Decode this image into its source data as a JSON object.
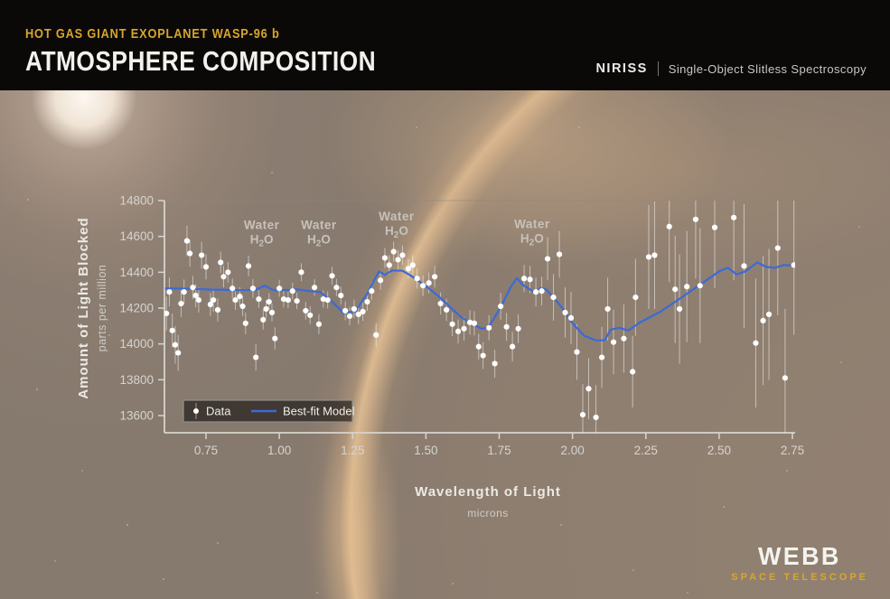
{
  "header": {
    "eyebrow": "HOT GAS GIANT EXOPLANET WASP-96 b",
    "title": "ATMOSPHERE COMPOSITION",
    "instrument": "NIRISS",
    "mode": "Single-Object Slitless Spectroscopy"
  },
  "logo": {
    "name": "WEBB",
    "sub": "SPACE TELESCOPE"
  },
  "chart_data": {
    "type": "scatter",
    "xlabel": "Wavelength of Light",
    "xlabel_sub": "microns",
    "ylabel": "Amount of Light Blocked",
    "ylabel_sub": "parts per million",
    "xlim": [
      0.6,
      2.8
    ],
    "ylim": [
      13500,
      14800
    ],
    "x_ticks": [
      0.75,
      1.0,
      1.25,
      1.5,
      1.75,
      2.0,
      2.25,
      2.5,
      2.75
    ],
    "x_tick_labels": [
      "0.75",
      "1.00",
      "1.25",
      "1.50",
      "1.75",
      "2.00",
      "2.25",
      "2.50",
      "2.75"
    ],
    "y_ticks": [
      14800,
      14600,
      14400,
      14200,
      14000,
      13800,
      13600
    ],
    "grid": false,
    "legend": {
      "data_label": "Data",
      "model_label": "Best-fit Model",
      "position": "lower left"
    },
    "colors": {
      "model": "#3b6ad8",
      "data": "#ffffff",
      "axis": "#d7d4cf",
      "annotation": "#c6c2bb",
      "box": "#8a8782",
      "accent_gold": "#d9a62c"
    },
    "annotations": [
      {
        "line1": "Water",
        "line2": "H₂O",
        "x": 0.94,
        "y": 14640
      },
      {
        "line1": "Water",
        "line2": "H₂O",
        "x": 1.135,
        "y": 14640
      },
      {
        "line1": "Water",
        "line2": "H₂O",
        "x": 1.4,
        "y": 14690
      },
      {
        "line1": "Water",
        "line2": "H₂O",
        "x": 1.862,
        "y": 14645
      }
    ],
    "series": [
      {
        "name": "Data",
        "type": "scatter",
        "points": [
          [
            0.615,
            14170,
            95
          ],
          [
            0.625,
            14290,
            80
          ],
          [
            0.635,
            14075,
            95
          ],
          [
            0.645,
            13995,
            105
          ],
          [
            0.655,
            13950,
            100
          ],
          [
            0.665,
            14225,
            75
          ],
          [
            0.675,
            14290,
            70
          ],
          [
            0.685,
            14575,
            85
          ],
          [
            0.695,
            14505,
            75
          ],
          [
            0.705,
            14315,
            65
          ],
          [
            0.715,
            14270,
            65
          ],
          [
            0.725,
            14245,
            70
          ],
          [
            0.735,
            14495,
            75
          ],
          [
            0.75,
            14430,
            70
          ],
          [
            0.765,
            14220,
            65
          ],
          [
            0.775,
            14245,
            65
          ],
          [
            0.79,
            14190,
            65
          ],
          [
            0.8,
            14455,
            60
          ],
          [
            0.81,
            14375,
            60
          ],
          [
            0.825,
            14400,
            58
          ],
          [
            0.84,
            14310,
            55
          ],
          [
            0.85,
            14245,
            55
          ],
          [
            0.865,
            14265,
            52
          ],
          [
            0.875,
            14210,
            55
          ],
          [
            0.885,
            14115,
            60
          ],
          [
            0.895,
            14435,
            58
          ],
          [
            0.91,
            14310,
            52
          ],
          [
            0.92,
            13925,
            75
          ],
          [
            0.93,
            14250,
            50
          ],
          [
            0.945,
            14135,
            55
          ],
          [
            0.955,
            14195,
            50
          ],
          [
            0.965,
            14235,
            48
          ],
          [
            0.975,
            14175,
            50
          ],
          [
            0.985,
            14030,
            62
          ],
          [
            1.0,
            14310,
            48
          ],
          [
            1.015,
            14250,
            46
          ],
          [
            1.03,
            14245,
            46
          ],
          [
            1.045,
            14295,
            46
          ],
          [
            1.06,
            14240,
            46
          ],
          [
            1.075,
            14400,
            50
          ],
          [
            1.09,
            14185,
            50
          ],
          [
            1.105,
            14160,
            50
          ],
          [
            1.12,
            14315,
            46
          ],
          [
            1.135,
            14110,
            56
          ],
          [
            1.15,
            14250,
            48
          ],
          [
            1.165,
            14245,
            48
          ],
          [
            1.18,
            14380,
            50
          ],
          [
            1.195,
            14315,
            48
          ],
          [
            1.21,
            14270,
            50
          ],
          [
            1.225,
            14185,
            52
          ],
          [
            1.24,
            14155,
            52
          ],
          [
            1.255,
            14195,
            52
          ],
          [
            1.27,
            14165,
            54
          ],
          [
            1.285,
            14180,
            52
          ],
          [
            1.3,
            14235,
            50
          ],
          [
            1.315,
            14295,
            50
          ],
          [
            1.33,
            14050,
            65
          ],
          [
            1.345,
            14355,
            52
          ],
          [
            1.36,
            14480,
            56
          ],
          [
            1.375,
            14440,
            54
          ],
          [
            1.39,
            14515,
            56
          ],
          [
            1.405,
            14470,
            54
          ],
          [
            1.42,
            14495,
            54
          ],
          [
            1.44,
            14420,
            54
          ],
          [
            1.455,
            14440,
            56
          ],
          [
            1.47,
            14365,
            56
          ],
          [
            1.49,
            14325,
            58
          ],
          [
            1.51,
            14340,
            58
          ],
          [
            1.53,
            14375,
            60
          ],
          [
            1.55,
            14225,
            62
          ],
          [
            1.57,
            14190,
            62
          ],
          [
            1.59,
            14110,
            66
          ],
          [
            1.61,
            14070,
            66
          ],
          [
            1.63,
            14085,
            66
          ],
          [
            1.65,
            14120,
            68
          ],
          [
            1.665,
            14115,
            68
          ],
          [
            1.68,
            13985,
            72
          ],
          [
            1.695,
            13935,
            75
          ],
          [
            1.715,
            14090,
            70
          ],
          [
            1.735,
            13890,
            78
          ],
          [
            1.755,
            14210,
            75
          ],
          [
            1.775,
            14095,
            78
          ],
          [
            1.795,
            13985,
            82
          ],
          [
            1.815,
            14085,
            80
          ],
          [
            1.835,
            14365,
            76
          ],
          [
            1.855,
            14360,
            76
          ],
          [
            1.875,
            14290,
            80
          ],
          [
            1.895,
            14295,
            80
          ],
          [
            1.915,
            14475,
            120
          ],
          [
            1.935,
            14260,
            130
          ],
          [
            1.955,
            14500,
            130
          ],
          [
            1.975,
            14175,
            140
          ],
          [
            1.995,
            14145,
            145
          ],
          [
            2.015,
            13955,
            155
          ],
          [
            2.035,
            13605,
            170
          ],
          [
            2.055,
            13750,
            170
          ],
          [
            2.08,
            13590,
            180
          ],
          [
            2.1,
            13925,
            170
          ],
          [
            2.12,
            14195,
            175
          ],
          [
            2.14,
            14010,
            180
          ],
          [
            2.175,
            14030,
            190
          ],
          [
            2.205,
            13845,
            200
          ],
          [
            2.215,
            14260,
            215
          ],
          [
            2.26,
            14485,
            290
          ],
          [
            2.28,
            14495,
            300
          ],
          [
            2.33,
            14655,
            310
          ],
          [
            2.35,
            14305,
            300
          ],
          [
            2.365,
            14195,
            305
          ],
          [
            2.39,
            14320,
            310
          ],
          [
            2.42,
            14695,
            330
          ],
          [
            2.435,
            14325,
            320
          ],
          [
            2.485,
            14650,
            340
          ],
          [
            2.55,
            14705,
            350
          ],
          [
            2.585,
            14435,
            345
          ],
          [
            2.625,
            14005,
            360
          ],
          [
            2.65,
            14130,
            360
          ],
          [
            2.67,
            14165,
            365
          ],
          [
            2.7,
            14535,
            375
          ],
          [
            2.725,
            13810,
            385
          ],
          [
            2.755,
            14440,
            390
          ]
        ]
      },
      {
        "name": "Best-fit Model",
        "type": "line",
        "points": [
          [
            0.61,
            14310
          ],
          [
            0.7,
            14308
          ],
          [
            0.78,
            14303
          ],
          [
            0.86,
            14300
          ],
          [
            0.92,
            14302
          ],
          [
            0.95,
            14325
          ],
          [
            0.98,
            14300
          ],
          [
            1.02,
            14300
          ],
          [
            1.06,
            14305
          ],
          [
            1.1,
            14295
          ],
          [
            1.14,
            14290
          ],
          [
            1.18,
            14235
          ],
          [
            1.22,
            14172
          ],
          [
            1.26,
            14185
          ],
          [
            1.3,
            14280
          ],
          [
            1.325,
            14360
          ],
          [
            1.34,
            14405
          ],
          [
            1.36,
            14385
          ],
          [
            1.385,
            14410
          ],
          [
            1.42,
            14408
          ],
          [
            1.45,
            14380
          ],
          [
            1.48,
            14345
          ],
          [
            1.51,
            14310
          ],
          [
            1.54,
            14270
          ],
          [
            1.58,
            14210
          ],
          [
            1.62,
            14150
          ],
          [
            1.66,
            14110
          ],
          [
            1.69,
            14085
          ],
          [
            1.71,
            14090
          ],
          [
            1.73,
            14135
          ],
          [
            1.76,
            14220
          ],
          [
            1.79,
            14320
          ],
          [
            1.81,
            14367
          ],
          [
            1.83,
            14330
          ],
          [
            1.87,
            14288
          ],
          [
            1.89,
            14310
          ],
          [
            1.91,
            14305
          ],
          [
            1.94,
            14250
          ],
          [
            1.97,
            14190
          ],
          [
            2.0,
            14115
          ],
          [
            2.04,
            14045
          ],
          [
            2.08,
            14020
          ],
          [
            2.11,
            14020
          ],
          [
            2.13,
            14080
          ],
          [
            2.16,
            14090
          ],
          [
            2.19,
            14075
          ],
          [
            2.23,
            14120
          ],
          [
            2.3,
            14180
          ],
          [
            2.36,
            14246
          ],
          [
            2.43,
            14325
          ],
          [
            2.47,
            14370
          ],
          [
            2.5,
            14405
          ],
          [
            2.53,
            14425
          ],
          [
            2.56,
            14388
          ],
          [
            2.59,
            14405
          ],
          [
            2.63,
            14455
          ],
          [
            2.66,
            14430
          ],
          [
            2.69,
            14425
          ],
          [
            2.72,
            14440
          ],
          [
            2.755,
            14438
          ]
        ]
      }
    ]
  }
}
